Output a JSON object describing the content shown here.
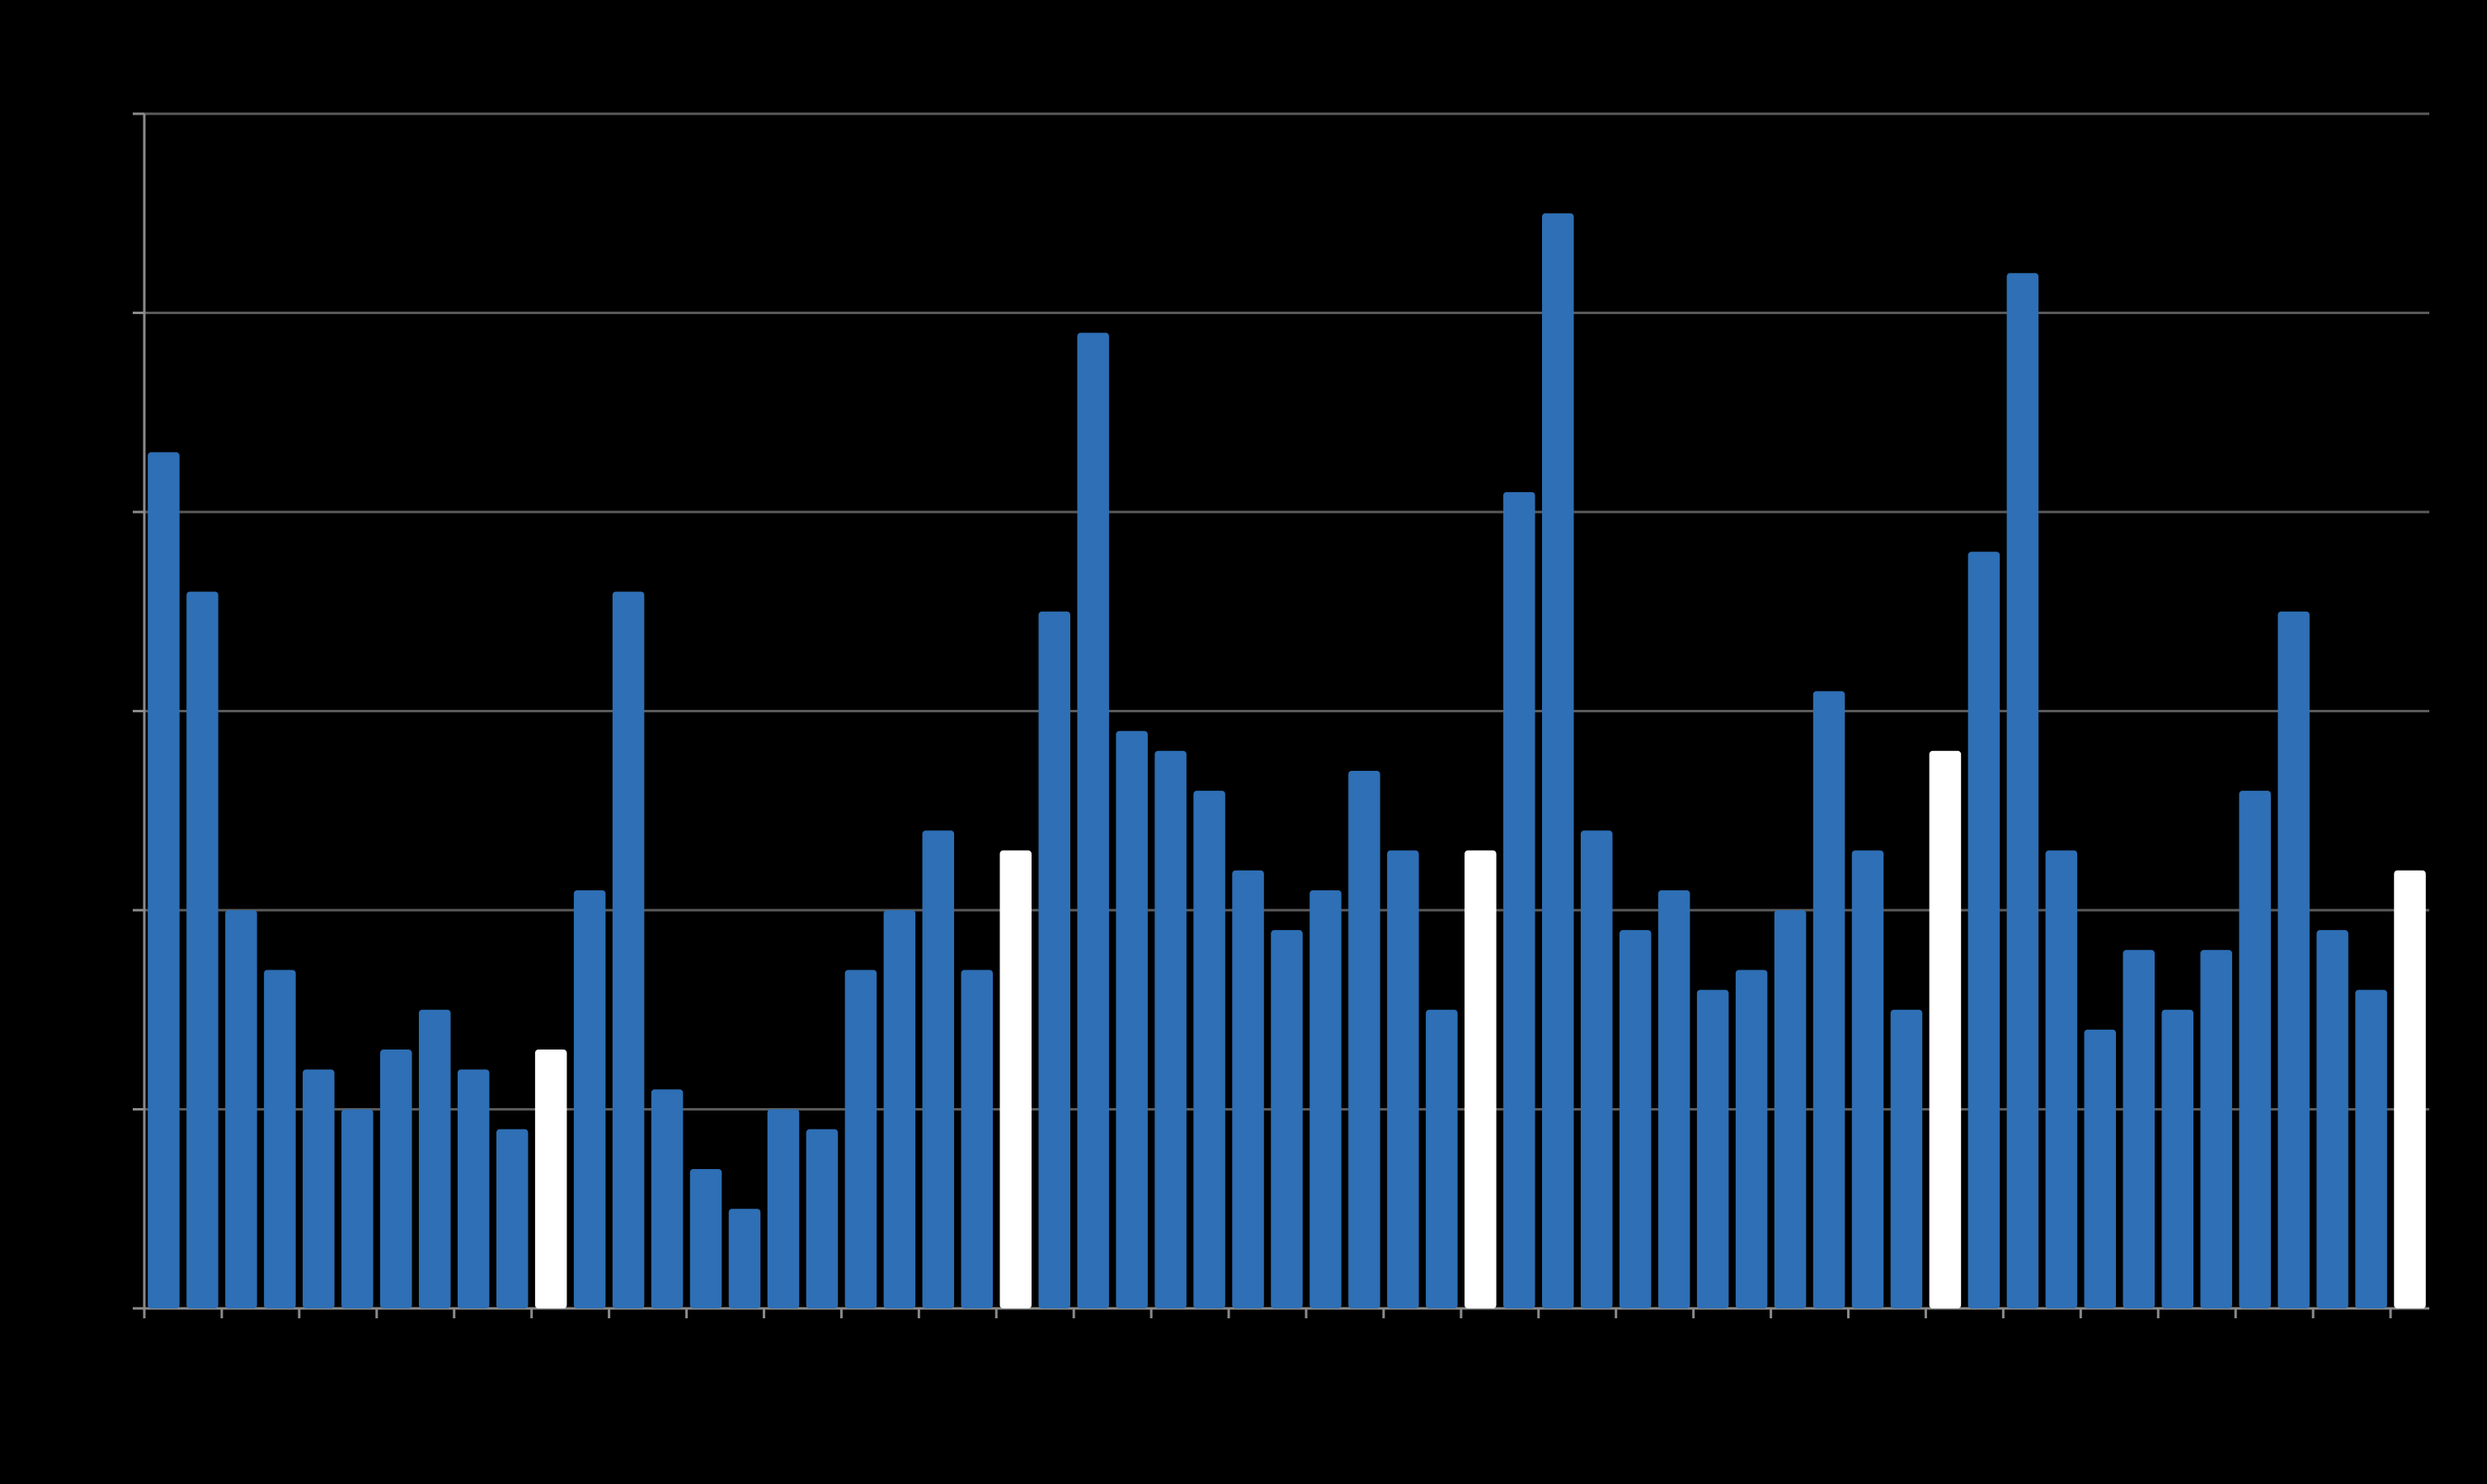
{
  "chart_data": {
    "type": "bar",
    "values": [
      43,
      36,
      20,
      17,
      12,
      10,
      13,
      15,
      12,
      9,
      13,
      21,
      36,
      11,
      7,
      5,
      10,
      9,
      17,
      20,
      24,
      17,
      23,
      35,
      49,
      29,
      28,
      26,
      22,
      19,
      21,
      27,
      23,
      15,
      23,
      41,
      55,
      24,
      19,
      21,
      16,
      17,
      20,
      31,
      23,
      15,
      28,
      38,
      52,
      23,
      14,
      18,
      15,
      18,
      26,
      35,
      19,
      16,
      22
    ],
    "colors": [
      "#2e6fb5",
      "#2e6fb5",
      "#2e6fb5",
      "#2e6fb5",
      "#2e6fb5",
      "#2e6fb5",
      "#2e6fb5",
      "#2e6fb5",
      "#2e6fb5",
      "#2e6fb5",
      "#ffffff",
      "#2e6fb5",
      "#2e6fb5",
      "#2e6fb5",
      "#2e6fb5",
      "#2e6fb5",
      "#2e6fb5",
      "#2e6fb5",
      "#2e6fb5",
      "#2e6fb5",
      "#2e6fb5",
      "#2e6fb5",
      "#ffffff",
      "#2e6fb5",
      "#2e6fb5",
      "#2e6fb5",
      "#2e6fb5",
      "#2e6fb5",
      "#2e6fb5",
      "#2e6fb5",
      "#2e6fb5",
      "#2e6fb5",
      "#2e6fb5",
      "#2e6fb5",
      "#ffffff",
      "#2e6fb5",
      "#2e6fb5",
      "#2e6fb5",
      "#2e6fb5",
      "#2e6fb5",
      "#2e6fb5",
      "#2e6fb5",
      "#2e6fb5",
      "#2e6fb5",
      "#2e6fb5",
      "#2e6fb5",
      "#ffffff",
      "#2e6fb5",
      "#2e6fb5",
      "#2e6fb5",
      "#2e6fb5",
      "#2e6fb5",
      "#2e6fb5",
      "#2e6fb5",
      "#2e6fb5",
      "#2e6fb5",
      "#2e6fb5",
      "#2e6fb5",
      "#ffffff"
    ],
    "ylim": [
      0,
      60
    ],
    "yticks": [
      0,
      10,
      20,
      30,
      40,
      50,
      60
    ],
    "grid": true
  }
}
